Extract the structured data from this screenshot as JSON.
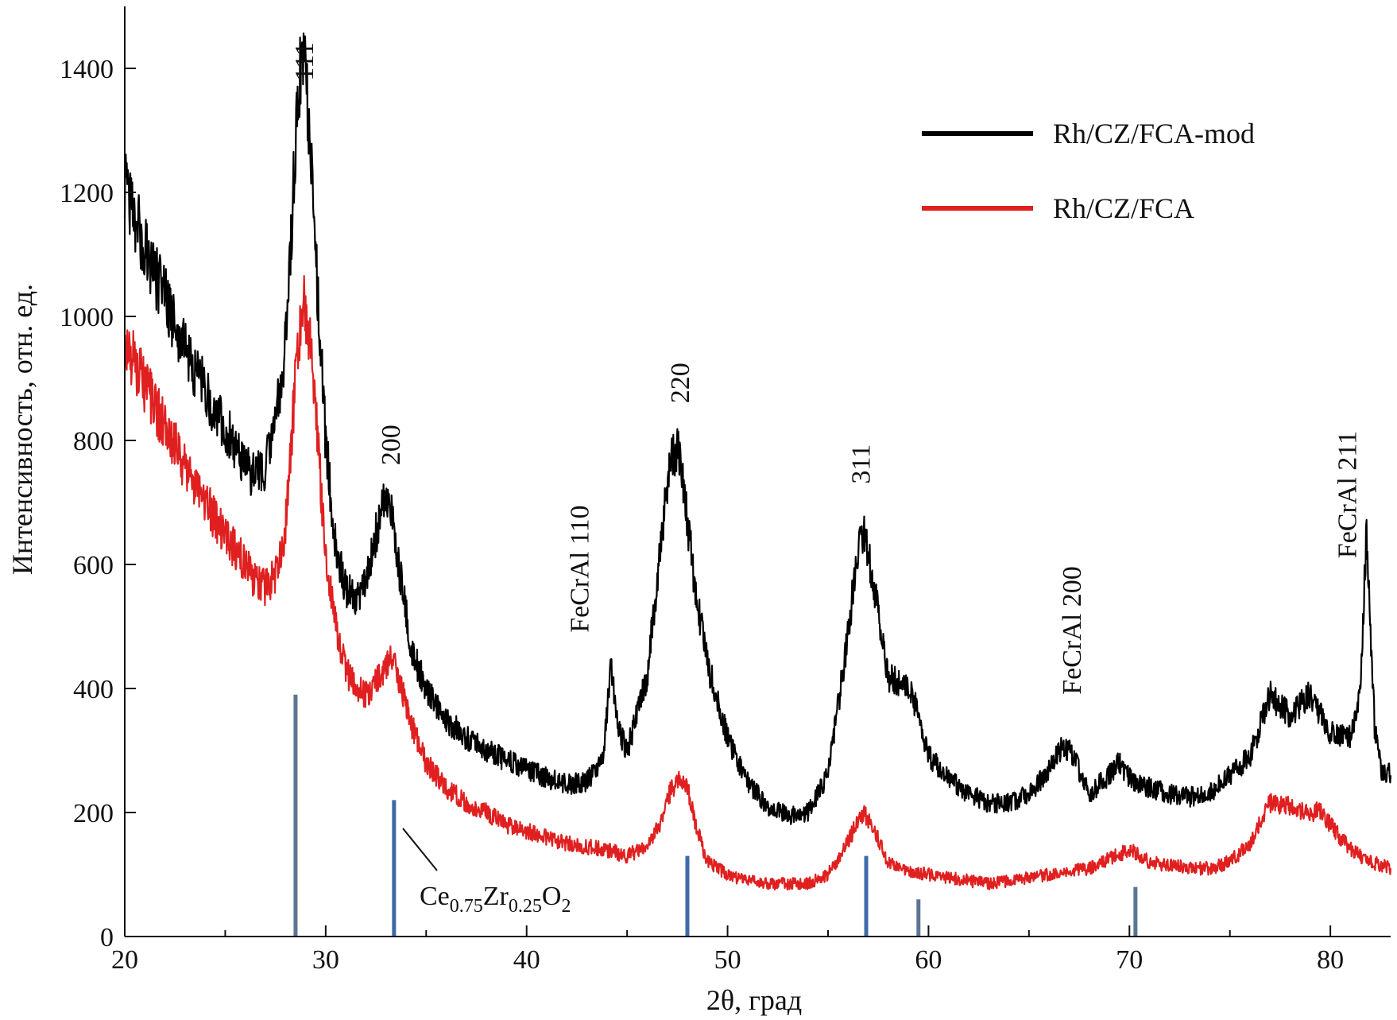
{
  "chart_data": {
    "type": "line",
    "xlabel": "2θ, град",
    "ylabel": "Интенсивность, отн. ед.",
    "xlim": [
      20,
      83
    ],
    "ylim": [
      0,
      1500
    ],
    "x_ticks": [
      "20",
      "30",
      "40",
      "50",
      "60",
      "70",
      "80"
    ],
    "y_ticks": [
      "0",
      "200",
      "400",
      "600",
      "800",
      "1000",
      "1200",
      "1400"
    ],
    "grid": false,
    "legend_position": "top-right",
    "colors": {
      "mod": "#000000",
      "base": "#e02020",
      "ref": "#3e6aa8",
      "ref_alt": "#5b7592"
    },
    "series": [
      {
        "name": "Rh/CZ/FCA-mod",
        "color": "#000000",
        "x": [
          20,
          21,
          22,
          23,
          24,
          25,
          26,
          26.5,
          27,
          27.5,
          28,
          28.3,
          28.6,
          28.9,
          29.2,
          29.6,
          30,
          30.5,
          31,
          31.5,
          32,
          32.5,
          33,
          33.3,
          33.8,
          34.3,
          35,
          36,
          37,
          38,
          39,
          40,
          41,
          42,
          43,
          43.8,
          44.2,
          44.6,
          45,
          46,
          46.6,
          47.1,
          47.5,
          47.9,
          48.4,
          49,
          50,
          51,
          52,
          53,
          54,
          55,
          55.8,
          56.4,
          56.8,
          57.3,
          58,
          59,
          59.5,
          60,
          61,
          62,
          63,
          64,
          65,
          66,
          66.7,
          67.2,
          68,
          69,
          69.5,
          70,
          71,
          72,
          73,
          74,
          75,
          76,
          77,
          78,
          79,
          80,
          81,
          81.5,
          81.8,
          82.2,
          82.5,
          83
        ],
        "y": [
          1210,
          1110,
          1030,
          950,
          880,
          820,
          760,
          740,
          760,
          830,
          960,
          1150,
          1350,
          1430,
          1300,
          1040,
          800,
          630,
          560,
          540,
          570,
          650,
          710,
          680,
          560,
          460,
          400,
          350,
          320,
          300,
          285,
          270,
          255,
          245,
          250,
          280,
          440,
          330,
          300,
          420,
          610,
          760,
          790,
          700,
          560,
          440,
          320,
          250,
          210,
          195,
          200,
          260,
          440,
          600,
          660,
          560,
          420,
          400,
          360,
          290,
          255,
          230,
          215,
          215,
          230,
          270,
          310,
          290,
          230,
          260,
          280,
          255,
          240,
          230,
          225,
          230,
          260,
          290,
          390,
          355,
          390,
          330,
          320,
          400,
          660,
          340,
          270,
          260
        ]
      },
      {
        "name": "Rh/CZ/FCA",
        "color": "#e02020",
        "x": [
          20,
          21,
          22,
          23,
          24,
          25,
          26,
          26.5,
          27,
          27.5,
          28,
          28.3,
          28.6,
          28.9,
          29.2,
          29.6,
          30,
          30.5,
          31,
          31.5,
          32,
          32.5,
          33,
          33.3,
          33.8,
          34.3,
          35,
          36,
          37,
          38,
          39,
          40,
          41,
          42,
          43,
          44,
          45,
          46,
          46.6,
          47.1,
          47.6,
          48,
          48.5,
          49,
          50,
          51,
          52,
          53,
          54,
          55,
          55.8,
          56.4,
          56.8,
          57.3,
          58,
          59,
          60,
          61,
          62,
          63,
          64,
          65,
          66,
          67,
          68,
          69,
          70,
          71,
          72,
          73,
          74,
          75,
          76,
          77,
          78,
          79,
          79.5,
          80,
          81,
          82,
          83
        ],
        "y": [
          960,
          890,
          820,
          760,
          700,
          650,
          600,
          575,
          565,
          580,
          660,
          800,
          950,
          1030,
          960,
          800,
          620,
          500,
          430,
          400,
          390,
          410,
          440,
          450,
          400,
          340,
          280,
          240,
          215,
          200,
          180,
          170,
          160,
          150,
          145,
          140,
          130,
          145,
          180,
          230,
          255,
          240,
          170,
          120,
          100,
          90,
          85,
          85,
          85,
          100,
          140,
          180,
          200,
          170,
          120,
          105,
          100,
          95,
          90,
          85,
          90,
          95,
          100,
          105,
          110,
          125,
          140,
          120,
          115,
          110,
          110,
          120,
          150,
          215,
          210,
          195,
          205,
          180,
          140,
          120,
          110
        ]
      }
    ],
    "peak_labels": [
      {
        "text": "111",
        "x": 28.9,
        "y": 1380
      },
      {
        "text": "200",
        "x": 33.2,
        "y": 760
      },
      {
        "text": "220",
        "x": 47.6,
        "y": 860
      },
      {
        "text": "311",
        "x": 56.6,
        "y": 730
      },
      {
        "text": "FeCrAl 110",
        "x": 42.6,
        "y": 490
      },
      {
        "text": "FeCrAl 200",
        "x": 67.1,
        "y": 390
      },
      {
        "text": "FeCrAl 211",
        "x": 80.8,
        "y": 610
      }
    ],
    "reference_lines": {
      "name": "Ce0.75Zr0.25O2",
      "positions": [
        28.5,
        33.4,
        48.0,
        56.9,
        59.5,
        70.3
      ],
      "heights": [
        390,
        220,
        130,
        130,
        60,
        80
      ],
      "label_parts": {
        "base1": "Ce",
        "sub1": "0.75",
        "base2": "Zr",
        "sub2": "0.25",
        "base3": "O",
        "sub3": "2"
      }
    }
  }
}
